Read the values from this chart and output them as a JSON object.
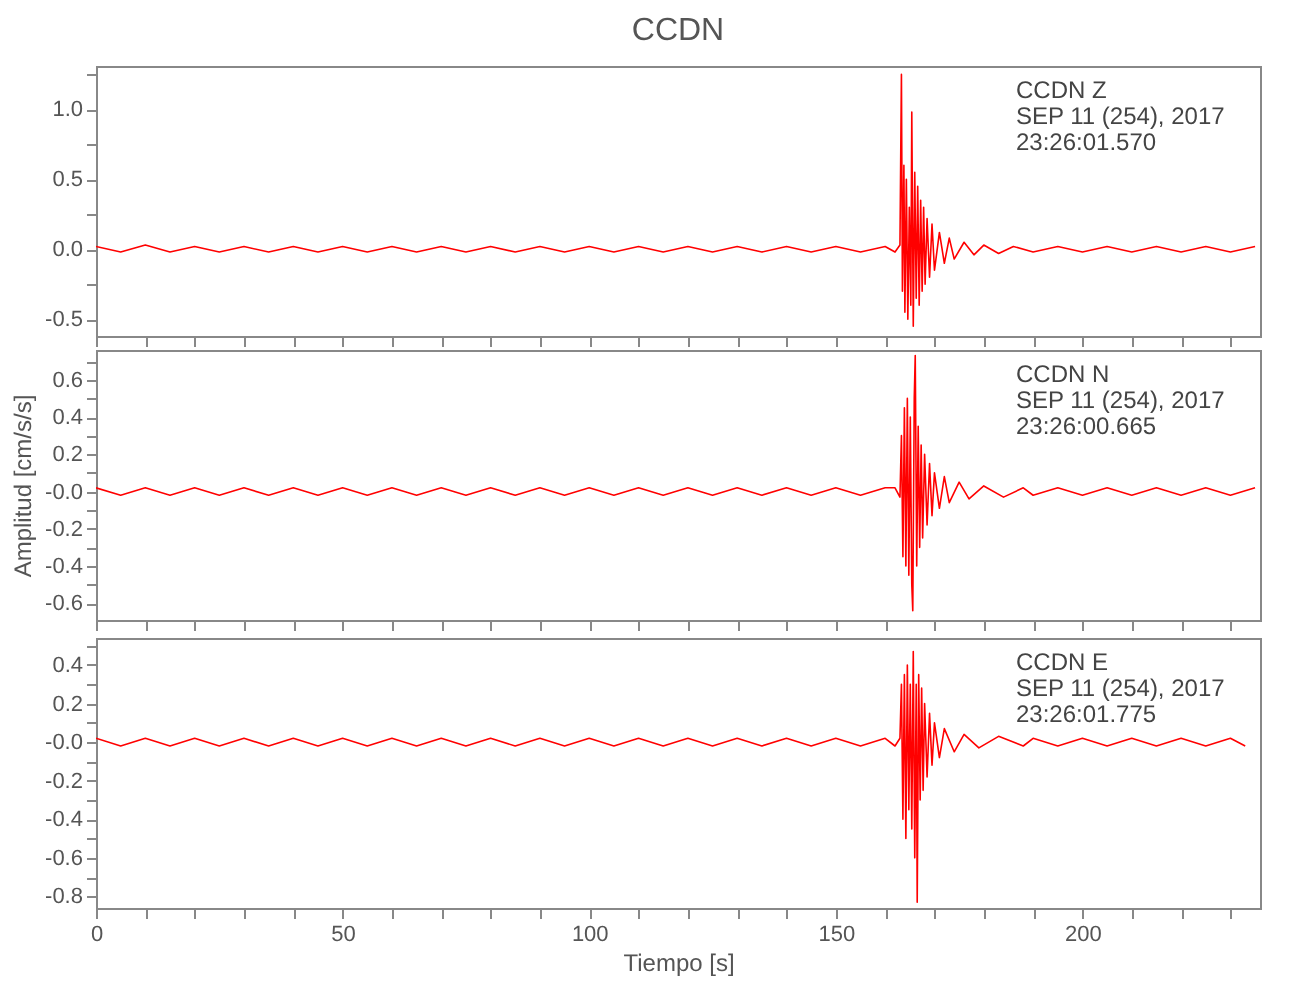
{
  "chart_data": [
    {
      "type": "line",
      "title": "CCDN",
      "color": "#ff0000",
      "xlim": [
        0,
        236
      ],
      "ylim": [
        -0.62,
        1.31
      ],
      "tick_labels": "y",
      "xticks": [
        0,
        {
          "value": 10,
          "label": null
        },
        {
          "value": 20,
          "label": null
        },
        {
          "value": 30,
          "label": null
        },
        {
          "value": 40,
          "label": null
        },
        50,
        {
          "value": 60,
          "label": null
        },
        {
          "value": 70,
          "label": null
        },
        {
          "value": 80,
          "label": null
        },
        {
          "value": 90,
          "label": null
        },
        100,
        {
          "value": 110,
          "label": null
        },
        {
          "value": 120,
          "label": null
        },
        {
          "value": 130,
          "label": null
        },
        {
          "value": 140,
          "label": null
        },
        150,
        {
          "value": 160,
          "label": null
        },
        {
          "value": 170,
          "label": null
        },
        {
          "value": 180,
          "label": null
        },
        {
          "value": 190,
          "label": null
        },
        200,
        {
          "value": 210,
          "label": null
        },
        {
          "value": 220,
          "label": null
        },
        {
          "value": 230,
          "label": null
        }
      ],
      "yticks": [
        -0.5,
        {
          "value": -0.25,
          "label": null
        },
        {
          "value": 0,
          "label": "0.0"
        },
        {
          "value": 0.25,
          "label": null
        },
        0.5,
        {
          "value": 0.75,
          "label": null
        },
        {
          "value": 1,
          "label": "1.0"
        },
        {
          "value": 1.25,
          "label": null
        }
      ],
      "annotations": [
        "CCDN   Z",
        "SEP 11 (254), 2017",
        "23:26:01.570"
      ],
      "x": [
        0,
        5,
        10,
        15,
        20,
        25,
        30,
        35,
        40,
        45,
        50,
        55,
        60,
        65,
        70,
        75,
        80,
        85,
        90,
        95,
        100,
        105,
        110,
        115,
        120,
        125,
        130,
        135,
        140,
        145,
        150,
        155,
        160,
        162,
        163,
        163.3,
        163.5,
        163.8,
        164,
        164.3,
        164.6,
        164.9,
        165.2,
        165.4,
        165.7,
        166,
        166.3,
        166.6,
        166.9,
        167.2,
        167.5,
        167.8,
        168.1,
        168.5,
        169,
        169.5,
        170,
        171,
        172,
        173,
        174,
        176,
        178,
        180,
        183,
        186,
        190,
        195,
        200,
        205,
        210,
        215,
        220,
        225,
        230,
        235
      ],
      "values": [
        0.02,
        -0.02,
        0.03,
        -0.02,
        0.02,
        -0.02,
        0.02,
        -0.02,
        0.02,
        -0.02,
        0.02,
        -0.02,
        0.02,
        -0.02,
        0.02,
        -0.02,
        0.02,
        -0.02,
        0.02,
        -0.02,
        0.02,
        -0.02,
        0.02,
        -0.02,
        0.02,
        -0.02,
        0.02,
        -0.02,
        0.02,
        -0.02,
        0.02,
        -0.02,
        0.02,
        -0.02,
        0.03,
        1.25,
        -0.3,
        0.6,
        -0.45,
        0.5,
        -0.5,
        0.3,
        -0.4,
        0.98,
        -0.55,
        0.55,
        -0.35,
        0.45,
        -0.4,
        0.35,
        -0.3,
        0.3,
        -0.25,
        0.22,
        -0.2,
        0.18,
        -0.15,
        0.12,
        -0.1,
        0.08,
        -0.07,
        0.05,
        -0.04,
        0.03,
        -0.03,
        0.02,
        -0.02,
        0.02,
        -0.02,
        0.02,
        -0.02,
        0.02,
        -0.02,
        0.02,
        -0.02,
        0.02
      ]
    },
    {
      "type": "line",
      "color": "#ff0000",
      "xlim": [
        0,
        236
      ],
      "ylim": [
        -0.69,
        0.76
      ],
      "tick_labels": "y",
      "ylabel": "Amplitud [cm/s/s]",
      "xticks": [
        0,
        {
          "value": 10,
          "label": null
        },
        {
          "value": 20,
          "label": null
        },
        {
          "value": 30,
          "label": null
        },
        {
          "value": 40,
          "label": null
        },
        50,
        {
          "value": 60,
          "label": null
        },
        {
          "value": 70,
          "label": null
        },
        {
          "value": 80,
          "label": null
        },
        {
          "value": 90,
          "label": null
        },
        100,
        {
          "value": 110,
          "label": null
        },
        {
          "value": 120,
          "label": null
        },
        {
          "value": 130,
          "label": null
        },
        {
          "value": 140,
          "label": null
        },
        150,
        {
          "value": 160,
          "label": null
        },
        {
          "value": 170,
          "label": null
        },
        {
          "value": 180,
          "label": null
        },
        {
          "value": 190,
          "label": null
        },
        200,
        {
          "value": 210,
          "label": null
        },
        {
          "value": 220,
          "label": null
        },
        {
          "value": 230,
          "label": null
        }
      ],
      "yticks": [
        -0.6,
        {
          "value": -0.5,
          "label": null
        },
        -0.4,
        {
          "value": -0.3,
          "label": null
        },
        -0.2,
        {
          "value": -0.1,
          "label": null
        },
        {
          "value": 0,
          "label": "-0.0"
        },
        {
          "value": 0.1,
          "label": null
        },
        0.2,
        {
          "value": 0.3,
          "label": null
        },
        0.4,
        {
          "value": 0.5,
          "label": null
        },
        0.6,
        {
          "value": 0.7,
          "label": null
        }
      ],
      "annotations": [
        "CCDN   N",
        "SEP 11 (254), 2017",
        "23:26:00.665"
      ],
      "x": [
        0,
        5,
        10,
        15,
        20,
        25,
        30,
        35,
        40,
        45,
        50,
        55,
        60,
        65,
        70,
        75,
        80,
        85,
        90,
        95,
        100,
        105,
        110,
        115,
        120,
        125,
        130,
        135,
        140,
        145,
        150,
        155,
        160,
        162,
        163,
        163.3,
        163.6,
        163.9,
        164.2,
        164.5,
        164.8,
        165.1,
        165.4,
        165.6,
        165.9,
        166.1,
        166.4,
        166.7,
        167,
        167.3,
        167.6,
        168,
        168.5,
        169,
        169.5,
        170,
        171,
        172,
        173,
        175,
        177,
        180,
        184,
        188,
        190,
        195,
        200,
        205,
        210,
        215,
        220,
        225,
        230,
        235
      ],
      "values": [
        0.02,
        -0.02,
        0.02,
        -0.02,
        0.02,
        -0.02,
        0.02,
        -0.02,
        0.02,
        -0.02,
        0.02,
        -0.02,
        0.02,
        -0.02,
        0.02,
        -0.02,
        0.02,
        -0.02,
        0.02,
        -0.02,
        0.02,
        -0.02,
        0.02,
        -0.02,
        0.02,
        -0.02,
        0.02,
        -0.02,
        0.02,
        -0.02,
        0.02,
        -0.02,
        0.02,
        0.02,
        -0.03,
        0.3,
        -0.35,
        0.45,
        -0.4,
        0.5,
        -0.45,
        0.4,
        -0.5,
        -0.64,
        0.5,
        0.73,
        -0.4,
        0.35,
        -0.3,
        0.25,
        -0.25,
        0.2,
        -0.18,
        0.15,
        -0.13,
        0.1,
        -0.09,
        0.08,
        -0.06,
        0.05,
        -0.04,
        0.03,
        -0.03,
        0.02,
        -0.02,
        0.02,
        -0.02,
        0.02,
        -0.02,
        0.02,
        -0.02,
        0.02,
        -0.02,
        0.02
      ]
    },
    {
      "type": "line",
      "color": "#ff0000",
      "xlim": [
        0,
        236
      ],
      "ylim": [
        -0.86,
        0.54
      ],
      "xlabel": "Tiempo [s]",
      "xticks": [
        0,
        {
          "value": 10,
          "label": null
        },
        {
          "value": 20,
          "label": null
        },
        {
          "value": 30,
          "label": null
        },
        {
          "value": 40,
          "label": null
        },
        50,
        {
          "value": 60,
          "label": null
        },
        {
          "value": 70,
          "label": null
        },
        {
          "value": 80,
          "label": null
        },
        {
          "value": 90,
          "label": null
        },
        100,
        {
          "value": 110,
          "label": null
        },
        {
          "value": 120,
          "label": null
        },
        {
          "value": 130,
          "label": null
        },
        {
          "value": 140,
          "label": null
        },
        150,
        {
          "value": 160,
          "label": null
        },
        {
          "value": 170,
          "label": null
        },
        {
          "value": 180,
          "label": null
        },
        {
          "value": 190,
          "label": null
        },
        200,
        {
          "value": 210,
          "label": null
        },
        {
          "value": 220,
          "label": null
        },
        {
          "value": 230,
          "label": null
        }
      ],
      "yticks": [
        -0.8,
        {
          "value": -0.7,
          "label": null
        },
        -0.6,
        {
          "value": -0.5,
          "label": null
        },
        -0.4,
        {
          "value": -0.3,
          "label": null
        },
        -0.2,
        {
          "value": -0.1,
          "label": null
        },
        {
          "value": 0,
          "label": "-0.0"
        },
        {
          "value": 0.1,
          "label": null
        },
        0.2,
        {
          "value": 0.3,
          "label": null
        },
        0.4,
        {
          "value": 0.5,
          "label": null
        }
      ],
      "annotations": [
        "CCDN   E",
        "SEP 11 (254), 2017",
        "23:26:01.775"
      ],
      "x": [
        0,
        5,
        10,
        15,
        20,
        25,
        30,
        35,
        40,
        45,
        50,
        55,
        60,
        65,
        70,
        75,
        80,
        85,
        90,
        95,
        100,
        105,
        110,
        115,
        120,
        125,
        130,
        135,
        140,
        145,
        150,
        155,
        160,
        162,
        163,
        163.3,
        163.6,
        163.9,
        164.2,
        164.5,
        164.8,
        165.1,
        165.4,
        165.7,
        166,
        166.3,
        166.5,
        166.8,
        167.1,
        167.4,
        167.7,
        168,
        168.5,
        169,
        169.5,
        170,
        171,
        172,
        174,
        176,
        179,
        183,
        188,
        190,
        195,
        200,
        205,
        210,
        215,
        220,
        225,
        230,
        233
      ],
      "values": [
        0.02,
        -0.02,
        0.02,
        -0.02,
        0.02,
        -0.02,
        0.02,
        -0.02,
        0.02,
        -0.02,
        0.02,
        -0.02,
        0.02,
        -0.02,
        0.02,
        -0.02,
        0.02,
        -0.02,
        0.02,
        -0.02,
        0.02,
        -0.02,
        0.02,
        -0.02,
        0.02,
        -0.02,
        0.02,
        -0.02,
        0.02,
        -0.02,
        0.02,
        -0.02,
        0.02,
        -0.02,
        0.02,
        0.3,
        -0.4,
        0.35,
        -0.5,
        0.4,
        -0.35,
        0.3,
        -0.45,
        0.47,
        -0.6,
        0.3,
        -0.83,
        0.35,
        -0.3,
        0.28,
        -0.25,
        0.2,
        -0.18,
        0.15,
        -0.12,
        0.1,
        -0.08,
        0.07,
        -0.05,
        0.04,
        -0.03,
        0.03,
        -0.02,
        0.02,
        -0.02,
        0.02,
        -0.02,
        0.02,
        -0.02,
        0.02,
        -0.02,
        0.02,
        -0.02
      ]
    }
  ]
}
